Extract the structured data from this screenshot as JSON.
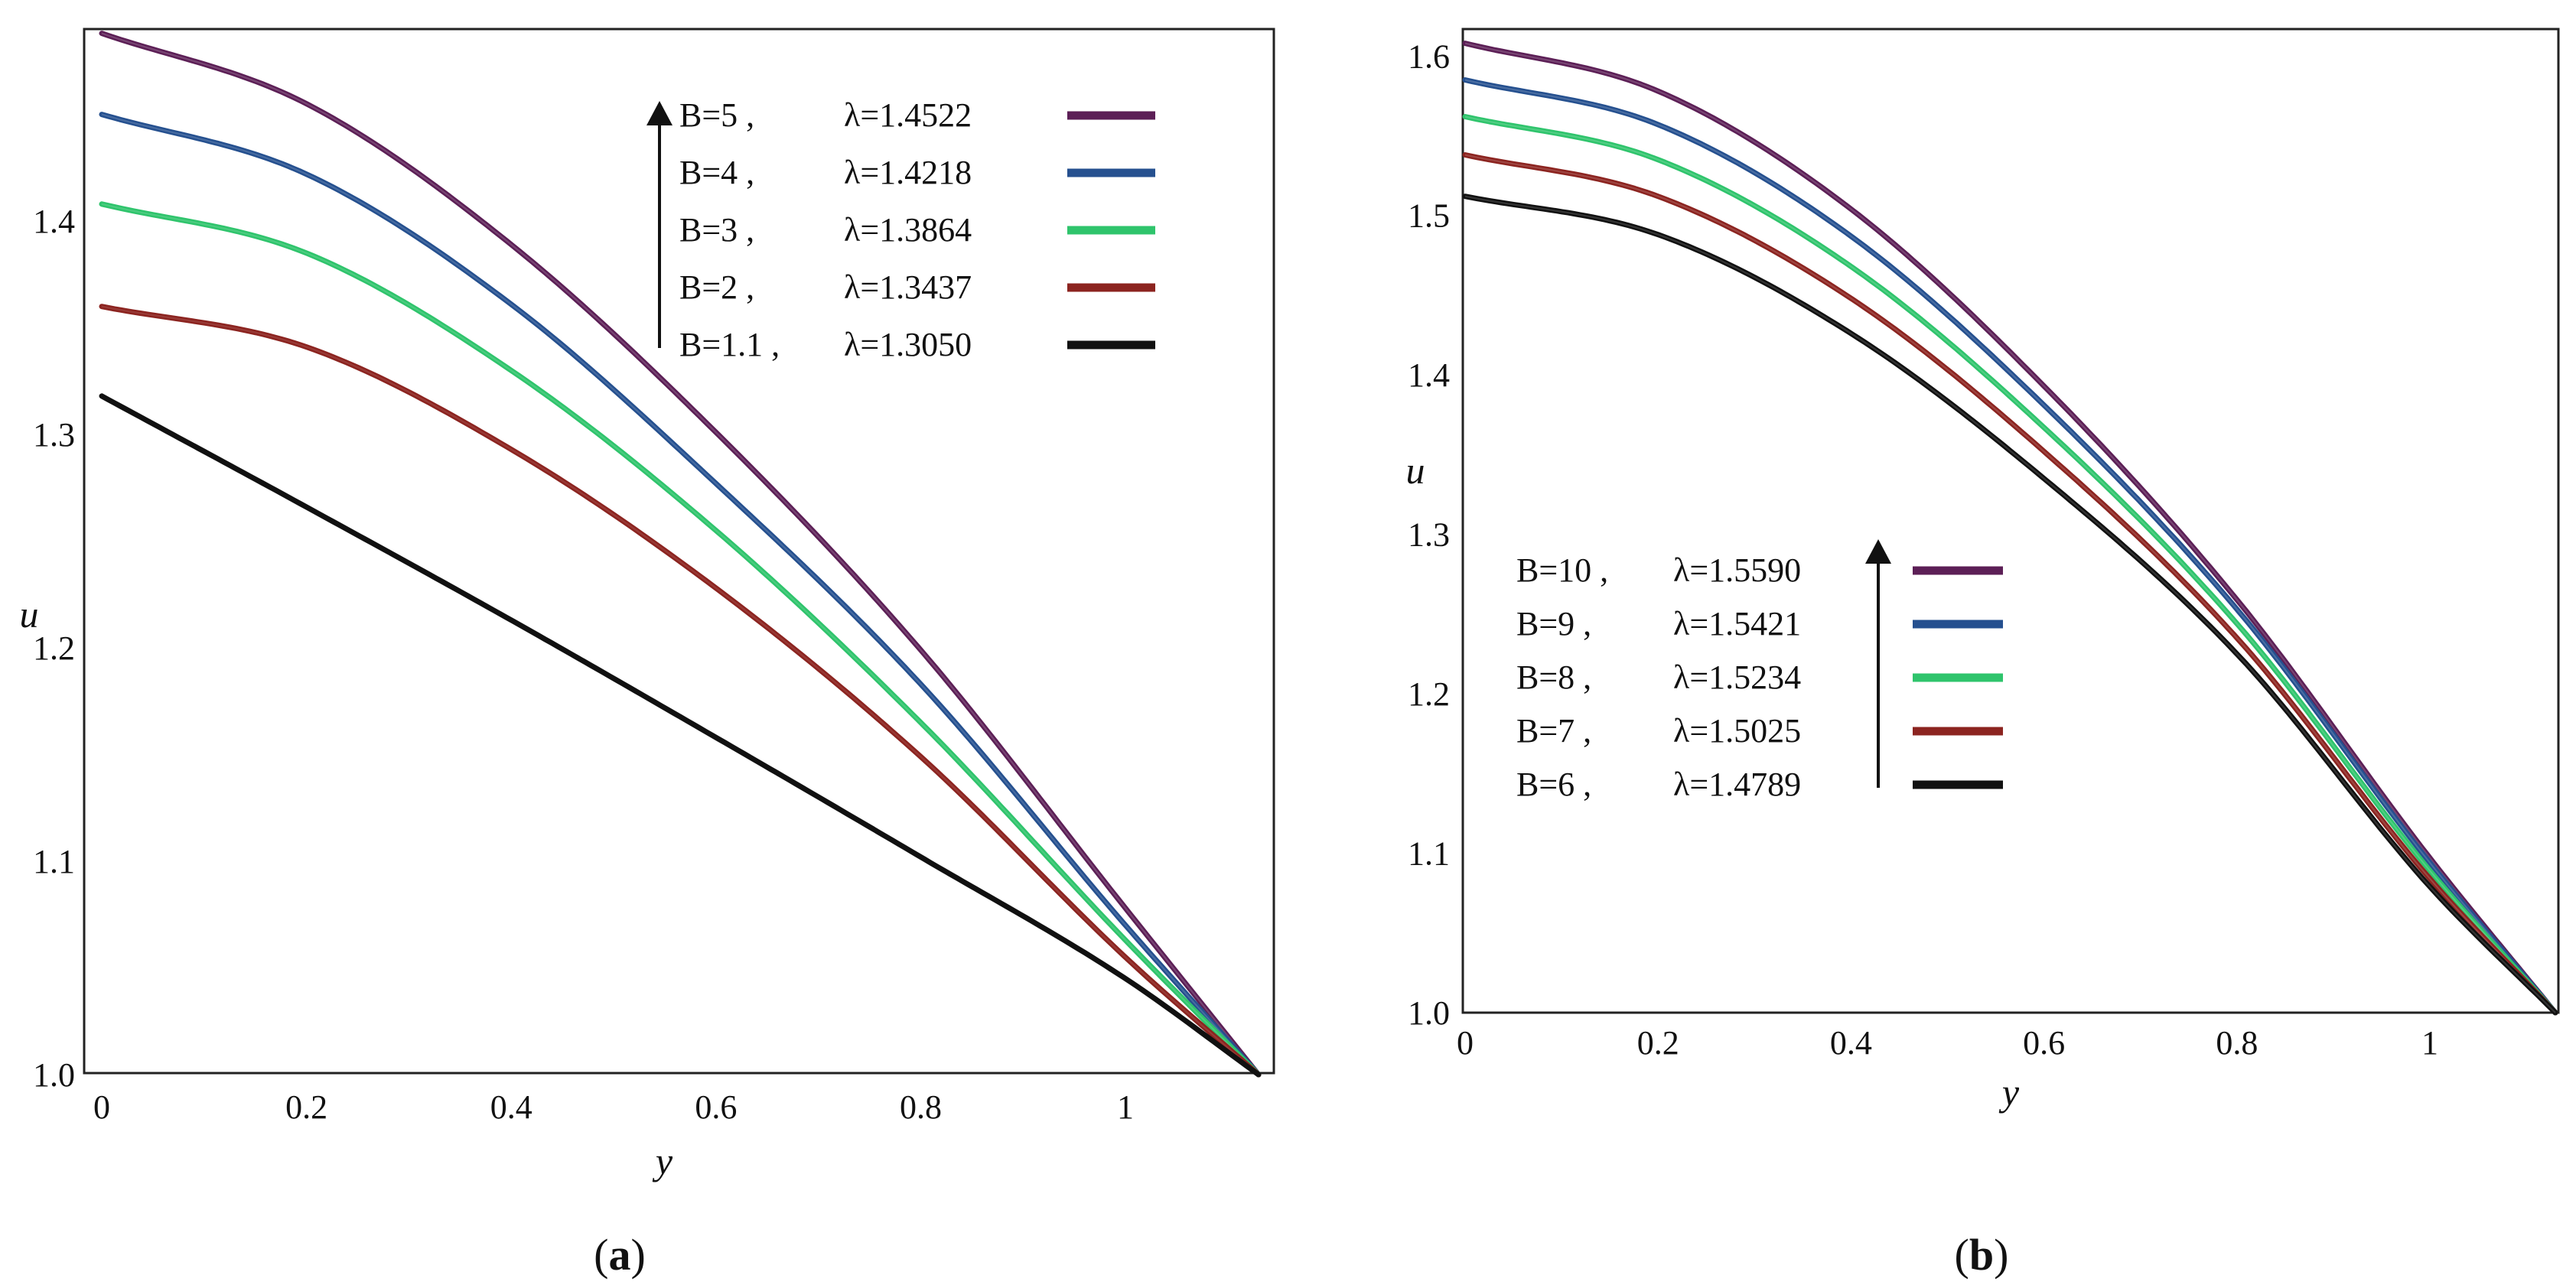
{
  "chart_data": [
    {
      "panel_label": "a",
      "type": "line",
      "xlabel": "y",
      "ylabel": "u",
      "xlim": [
        0,
        1.13
      ],
      "ylim": [
        1.0,
        1.49
      ],
      "x_ticks": [
        0,
        0.2,
        0.4,
        0.6,
        0.8,
        1
      ],
      "x_tick_labels": [
        "0",
        "0.2",
        "0.4",
        "0.6",
        "0.8",
        "1"
      ],
      "y_ticks": [
        1.0,
        1.1,
        1.2,
        1.3,
        1.4
      ],
      "y_tick_labels": [
        "1.0",
        "1.1",
        "1.2",
        "1.3",
        "1.4"
      ],
      "grid": false,
      "legend_position": "top-right",
      "legend_arrow": "up",
      "series": [
        {
          "name": "B=5",
          "lambda_text": "λ=1.4522",
          "color": "#5c1f56",
          "core": 0.52,
          "x": [
            0,
            0.2,
            0.4,
            0.6,
            0.8,
            1.0,
            1.13
          ],
          "values": [
            1.488,
            1.455,
            1.389,
            1.301,
            1.199,
            1.078,
            1.0
          ]
        },
        {
          "name": "B=4",
          "lambda_text": "λ=1.4218",
          "color": "#25508f",
          "core": 0.46,
          "x": [
            0,
            0.2,
            0.4,
            0.6,
            0.8,
            1.0,
            1.13
          ],
          "values": [
            1.45,
            1.422,
            1.361,
            1.277,
            1.183,
            1.07,
            1.0
          ]
        },
        {
          "name": "B=3",
          "lambda_text": "λ=1.3864",
          "color": "#2fc46c",
          "core": 0.4,
          "x": [
            0,
            0.2,
            0.4,
            0.6,
            0.8,
            1.0,
            1.13
          ],
          "values": [
            1.408,
            1.385,
            1.33,
            1.255,
            1.165,
            1.063,
            1.0
          ]
        },
        {
          "name": "B=2",
          "lambda_text": "λ=1.3437",
          "color": "#8c2420",
          "core": 0.3,
          "x": [
            0,
            0.2,
            0.4,
            0.6,
            0.8,
            1.0,
            1.13
          ],
          "values": [
            1.36,
            1.341,
            1.293,
            1.228,
            1.149,
            1.055,
            1.0
          ]
        },
        {
          "name": "B=1.1",
          "lambda_text": "λ=1.3050",
          "color": "#111111",
          "core": 0.03,
          "x": [
            0,
            0.2,
            0.4,
            0.6,
            0.8,
            1.0,
            1.13
          ],
          "values": [
            1.318,
            1.266,
            1.213,
            1.158,
            1.102,
            1.045,
            1.0
          ]
        }
      ]
    },
    {
      "panel_label": "b",
      "type": "line",
      "xlabel": "y",
      "ylabel": "u",
      "xlim": [
        0,
        1.13
      ],
      "ylim": [
        1.0,
        1.615
      ],
      "x_ticks": [
        0,
        0.2,
        0.4,
        0.6,
        0.8,
        1
      ],
      "x_tick_labels": [
        "0",
        "0.2",
        "0.4",
        "0.6",
        "0.8",
        "1"
      ],
      "y_ticks": [
        1.0,
        1.1,
        1.2,
        1.3,
        1.4,
        1.5,
        1.6
      ],
      "y_tick_labels": [
        "1.0",
        "1.1",
        "1.2",
        "1.3",
        "1.4",
        "1.5",
        "1.6"
      ],
      "grid": false,
      "legend_position": "center-left",
      "legend_arrow": "up",
      "series": [
        {
          "name": "B=10",
          "lambda_text": "λ=1.5590",
          "color": "#5c1f56",
          "core": 0.52,
          "x": [
            0,
            0.2,
            0.4,
            0.6,
            0.8,
            1.0,
            1.13
          ],
          "values": [
            1.608,
            1.578,
            1.504,
            1.393,
            1.259,
            1.097,
            1.0
          ]
        },
        {
          "name": "B=9",
          "lambda_text": "λ=1.5421",
          "color": "#25508f",
          "core": 0.5,
          "x": [
            0,
            0.2,
            0.4,
            0.6,
            0.8,
            1.0,
            1.13
          ],
          "values": [
            1.585,
            1.557,
            1.487,
            1.381,
            1.253,
            1.094,
            1.0
          ]
        },
        {
          "name": "B=8",
          "lambda_text": "λ=1.5234",
          "color": "#2fc46c",
          "core": 0.48,
          "x": [
            0,
            0.2,
            0.4,
            0.6,
            0.8,
            1.0,
            1.13
          ],
          "values": [
            1.562,
            1.535,
            1.468,
            1.367,
            1.244,
            1.089,
            1.0
          ]
        },
        {
          "name": "B=7",
          "lambda_text": "λ=1.5025",
          "color": "#8c2420",
          "core": 0.46,
          "x": [
            0,
            0.2,
            0.4,
            0.6,
            0.8,
            1.0,
            1.13
          ],
          "values": [
            1.538,
            1.512,
            1.448,
            1.352,
            1.235,
            1.084,
            1.0
          ]
        },
        {
          "name": "B=6",
          "lambda_text": "λ=1.4789",
          "color": "#111111",
          "core": 0.44,
          "x": [
            0,
            0.2,
            0.4,
            0.6,
            0.8,
            1.0,
            1.13
          ],
          "values": [
            1.512,
            1.488,
            1.426,
            1.335,
            1.225,
            1.079,
            1.0
          ]
        }
      ]
    }
  ]
}
